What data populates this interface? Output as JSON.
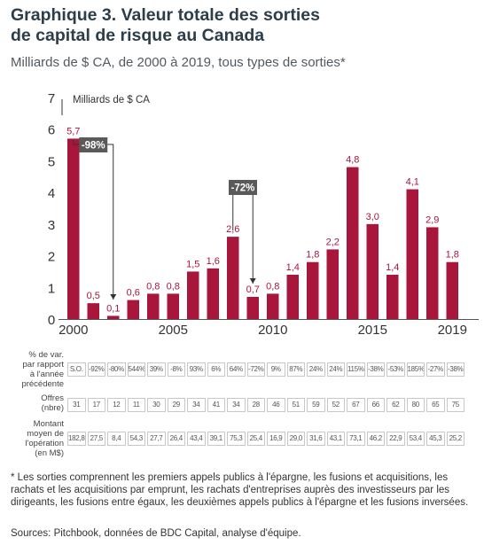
{
  "title_line1": "Graphique 3. Valeur totale des sorties",
  "title_line2": "de capital de risque au Canada",
  "subtitle": "Milliards de $ CA, de 2000 à 2019, tous types de sorties*",
  "chart_data": {
    "type": "bar",
    "unit_label": "Milliards de $ CA",
    "years": [
      2000,
      2001,
      2002,
      2003,
      2004,
      2005,
      2006,
      2007,
      2008,
      2009,
      2010,
      2011,
      2012,
      2013,
      2014,
      2015,
      2016,
      2017,
      2018,
      2019
    ],
    "values": [
      5.7,
      0.5,
      0.1,
      0.6,
      0.8,
      0.8,
      1.5,
      1.6,
      2.6,
      0.7,
      0.8,
      1.4,
      1.8,
      2.2,
      4.8,
      3.0,
      1.4,
      4.1,
      2.9,
      1.8
    ],
    "value_labels": [
      "5,7",
      "0,5",
      "0,1",
      "0,6",
      "0,8",
      "0,8",
      "1,5",
      "1,6",
      "2,6",
      "0,7",
      "0,8",
      "1,4",
      "1,8",
      "2,2",
      "4,8",
      "3,0",
      "1,4",
      "4,1",
      "2,9",
      "1,8"
    ],
    "y_ticks": [
      "0",
      "1",
      "2",
      "3",
      "4",
      "5",
      "6",
      "7"
    ],
    "ylim": [
      0,
      7
    ],
    "x_tick_labels": [
      "2000",
      "2005",
      "2010",
      "2015",
      "2019"
    ],
    "x_tick_years": [
      2000,
      2005,
      2010,
      2015,
      2019
    ],
    "bar_color": "#a8163b",
    "annotations": [
      {
        "text": "-98%",
        "from_year": 2000,
        "to_year": 2002
      },
      {
        "text": "-72%",
        "from_year": 2008,
        "to_year": 2009
      }
    ]
  },
  "table": {
    "rows": [
      {
        "label": [
          "% de var.",
          "par rapport",
          "à l'année",
          "précédente"
        ],
        "values": [
          "S.O.",
          "-92%",
          "-80%",
          "544%",
          "39%",
          "-8%",
          "93%",
          "6%",
          "64%",
          "-72%",
          "9%",
          "87%",
          "24%",
          "24%",
          "115%",
          "-38%",
          "-53%",
          "185%",
          "-27%",
          "-38%"
        ]
      },
      {
        "label": [
          "Offres",
          "(nbre)"
        ],
        "values": [
          "31",
          "17",
          "12",
          "11",
          "30",
          "29",
          "34",
          "41",
          "34",
          "28",
          "46",
          "51",
          "59",
          "52",
          "67",
          "66",
          "62",
          "80",
          "65",
          "75"
        ]
      },
      {
        "label": [
          "Montant",
          "moyen de",
          "l'opération",
          "(en M$)"
        ],
        "values": [
          "182,8",
          "27,5",
          "8,4",
          "54,3",
          "27,7",
          "26,4",
          "43,4",
          "39,1",
          "75,3",
          "25,4",
          "16,9",
          "29,0",
          "31,6",
          "43,1",
          "73,1",
          "46,2",
          "22,9",
          "53,4",
          "45,3",
          "25,2"
        ]
      }
    ]
  },
  "footnote": "* Les sorties comprennent les premiers appels publics à l'épargne, les fusions et acquisitions, les rachats et les acquisitions par emprunt, les rachats d'entreprises auprès des investisseurs par les dirigeants, les fusions entre égaux, les deuxièmes appels publics à l'épargne et les fusions inversées.",
  "source": "Sources: Pitchbook, données de BDC Capital, analyse d'équipe."
}
